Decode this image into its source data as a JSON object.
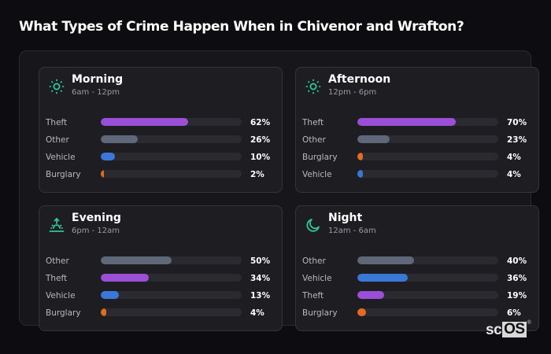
{
  "page": {
    "title": "What Types of Crime Happen When in Chivenor and Wrafton?"
  },
  "colors": {
    "Theft": "#9b4fd6",
    "Other": "#5f6878",
    "Vehicle": "#3a78d8",
    "Burglary": "#e06c1f",
    "accent": "#2fc79a"
  },
  "cards": [
    {
      "name": "Morning",
      "time": "6am - 12pm",
      "icon": "sun-icon",
      "rows": [
        {
          "label": "Theft",
          "value": 62,
          "display": "62%"
        },
        {
          "label": "Other",
          "value": 26,
          "display": "26%"
        },
        {
          "label": "Vehicle",
          "value": 10,
          "display": "10%"
        },
        {
          "label": "Burglary",
          "value": 2,
          "display": "2%"
        }
      ]
    },
    {
      "name": "Afternoon",
      "time": "12pm - 6pm",
      "icon": "sun-icon",
      "rows": [
        {
          "label": "Theft",
          "value": 70,
          "display": "70%"
        },
        {
          "label": "Other",
          "value": 23,
          "display": "23%"
        },
        {
          "label": "Burglary",
          "value": 4,
          "display": "4%"
        },
        {
          "label": "Vehicle",
          "value": 4,
          "display": "4%"
        }
      ]
    },
    {
      "name": "Evening",
      "time": "6pm - 12am",
      "icon": "sunset-icon",
      "rows": [
        {
          "label": "Other",
          "value": 50,
          "display": "50%"
        },
        {
          "label": "Theft",
          "value": 34,
          "display": "34%"
        },
        {
          "label": "Vehicle",
          "value": 13,
          "display": "13%"
        },
        {
          "label": "Burglary",
          "value": 4,
          "display": "4%"
        }
      ]
    },
    {
      "name": "Night",
      "time": "12am - 6am",
      "icon": "moon-icon",
      "rows": [
        {
          "label": "Other",
          "value": 40,
          "display": "40%"
        },
        {
          "label": "Vehicle",
          "value": 36,
          "display": "36%"
        },
        {
          "label": "Theft",
          "value": 19,
          "display": "19%"
        },
        {
          "label": "Burglary",
          "value": 6,
          "display": "6%"
        }
      ]
    }
  ],
  "logo": {
    "sc": "sc",
    "os": "OS",
    "reg": "®"
  },
  "chart_data": [
    {
      "type": "bar",
      "title": "Morning",
      "subtitle": "6am - 12pm",
      "categories": [
        "Theft",
        "Other",
        "Vehicle",
        "Burglary"
      ],
      "values": [
        62,
        26,
        10,
        2
      ],
      "ylim": [
        0,
        100
      ],
      "unit": "%"
    },
    {
      "type": "bar",
      "title": "Afternoon",
      "subtitle": "12pm - 6pm",
      "categories": [
        "Theft",
        "Other",
        "Burglary",
        "Vehicle"
      ],
      "values": [
        70,
        23,
        4,
        4
      ],
      "ylim": [
        0,
        100
      ],
      "unit": "%"
    },
    {
      "type": "bar",
      "title": "Evening",
      "subtitle": "6pm - 12am",
      "categories": [
        "Other",
        "Theft",
        "Vehicle",
        "Burglary"
      ],
      "values": [
        50,
        34,
        13,
        4
      ],
      "ylim": [
        0,
        100
      ],
      "unit": "%"
    },
    {
      "type": "bar",
      "title": "Night",
      "subtitle": "12am - 6am",
      "categories": [
        "Other",
        "Vehicle",
        "Theft",
        "Burglary"
      ],
      "values": [
        40,
        36,
        19,
        6
      ],
      "ylim": [
        0,
        100
      ],
      "unit": "%"
    }
  ]
}
